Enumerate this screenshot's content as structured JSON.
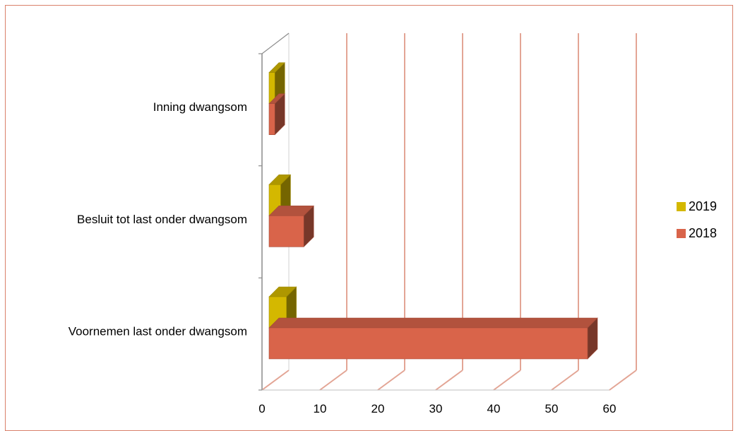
{
  "chart_data": {
    "type": "bar",
    "orientation": "horizontal",
    "categories": [
      "Voornemen last onder dwangsom",
      "Besluit tot last onder dwangsom",
      "Inning dwangsom"
    ],
    "series": [
      {
        "name": "2018",
        "values": [
          55,
          6,
          1
        ],
        "color": "#d9644a"
      },
      {
        "name": "2019",
        "values": [
          3,
          2,
          1
        ],
        "color": "#d4b800"
      }
    ],
    "x_ticks": [
      "0",
      "10",
      "20",
      "30",
      "40",
      "50",
      "60"
    ],
    "xlim": [
      0,
      60
    ],
    "grid": true,
    "legend_position": "right",
    "style": "3d"
  }
}
